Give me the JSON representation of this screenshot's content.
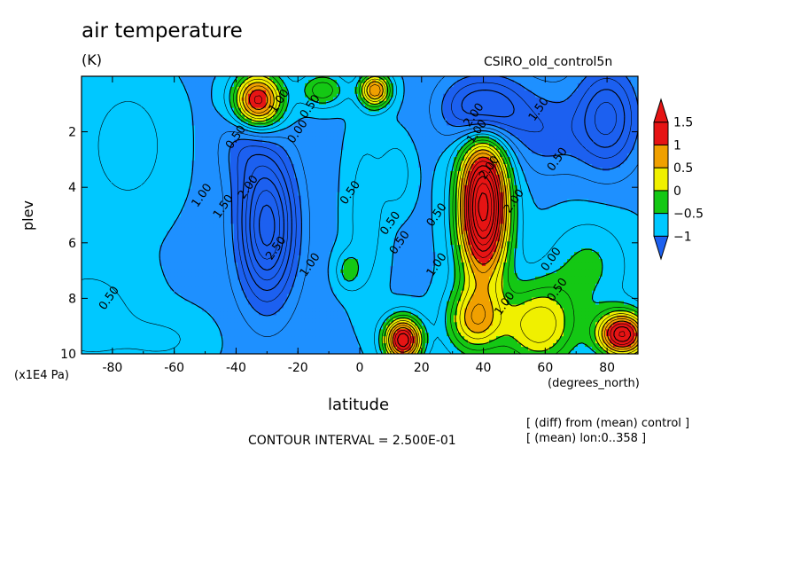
{
  "header": {
    "title": "air temperature",
    "units": "(K)",
    "dataset": "CSIRO_old_control5n"
  },
  "notes": {
    "contour_interval": "CONTOUR INTERVAL = 2.500E-01",
    "diff_note": "[ (diff) from (mean) control ]",
    "mean_note": "[ (mean) lon:0..358 ]"
  },
  "chart_data": {
    "type": "heatmap",
    "title": "air temperature",
    "units": "(K)",
    "xlabel": "latitude",
    "xunits": "(degrees_north)",
    "ylabel": "plev",
    "yunits": "(x1E4 Pa)",
    "x_range": [
      -90,
      90
    ],
    "y_range": [
      10,
      0
    ],
    "x_ticks": [
      -80,
      -60,
      -40,
      -20,
      0,
      20,
      40,
      60,
      80
    ],
    "y_ticks": [
      2,
      4,
      6,
      8,
      10
    ],
    "contour_interval": 0.25,
    "colorbar": {
      "levels": [
        -1,
        -0.5,
        0,
        0.5,
        1,
        1.5
      ],
      "labels": [
        "−1",
        "−0.5",
        "0",
        "0.5",
        "1",
        "1.5"
      ],
      "colors": [
        "#1c60f0",
        "#00c8ff",
        "#14c814",
        "#f0f000",
        "#f0a000",
        "#e61414"
      ]
    },
    "field_features": [
      {
        "kind": "max",
        "x": -33,
        "y": 1.0,
        "value": 1.75
      },
      {
        "kind": "min",
        "x": -30,
        "y": 5.5,
        "value": -2.5
      },
      {
        "kind": "max",
        "x": 40,
        "y": 4.6,
        "value": 3.0
      },
      {
        "kind": "max",
        "x": 15,
        "y": 9.4,
        "value": 1.75
      },
      {
        "kind": "max",
        "x": 85,
        "y": 9.2,
        "value": 1.75
      },
      {
        "kind": "min",
        "x": 40,
        "y": 1.3,
        "value": -2.0
      },
      {
        "kind": "min",
        "x": 80,
        "y": 1.2,
        "value": -1.75
      }
    ],
    "contour_labels": [
      {
        "text": "1.00",
        "x": -26,
        "y": 0.9
      },
      {
        "text": "0.50",
        "x": -16,
        "y": 1.1
      },
      {
        "text": "0.00",
        "x": -20,
        "y": 2.0
      },
      {
        "text": "0.50",
        "x": -40,
        "y": 2.2
      },
      {
        "text": "2.00",
        "x": -36,
        "y": 4.0
      },
      {
        "text": "1.00",
        "x": -51,
        "y": 4.3
      },
      {
        "text": "1.50",
        "x": -44,
        "y": 4.7
      },
      {
        "text": "2.50",
        "x": -27,
        "y": 6.2
      },
      {
        "text": "1.00",
        "x": -16,
        "y": 6.8
      },
      {
        "text": "0.50",
        "x": -81,
        "y": 8.0
      },
      {
        "text": "0.50",
        "x": -3,
        "y": 4.2
      },
      {
        "text": "0.50",
        "x": 10,
        "y": 5.3
      },
      {
        "text": "0.50",
        "x": 13,
        "y": 6.0
      },
      {
        "text": "0.50",
        "x": 25,
        "y": 5.0
      },
      {
        "text": "1.00",
        "x": 25,
        "y": 6.8
      },
      {
        "text": "2.00",
        "x": 37,
        "y": 1.4
      },
      {
        "text": "1.00",
        "x": 38,
        "y": 2.0
      },
      {
        "text": "1.50",
        "x": 58,
        "y": 1.2
      },
      {
        "text": "2.00",
        "x": 42,
        "y": 3.3
      },
      {
        "text": "2.00",
        "x": 50,
        "y": 4.5
      },
      {
        "text": "0.50",
        "x": 64,
        "y": 3.0
      },
      {
        "text": "0.00",
        "x": 62,
        "y": 6.6
      },
      {
        "text": "0.50",
        "x": 64,
        "y": 7.7
      },
      {
        "text": "1.00",
        "x": 47,
        "y": 8.2
      }
    ]
  }
}
